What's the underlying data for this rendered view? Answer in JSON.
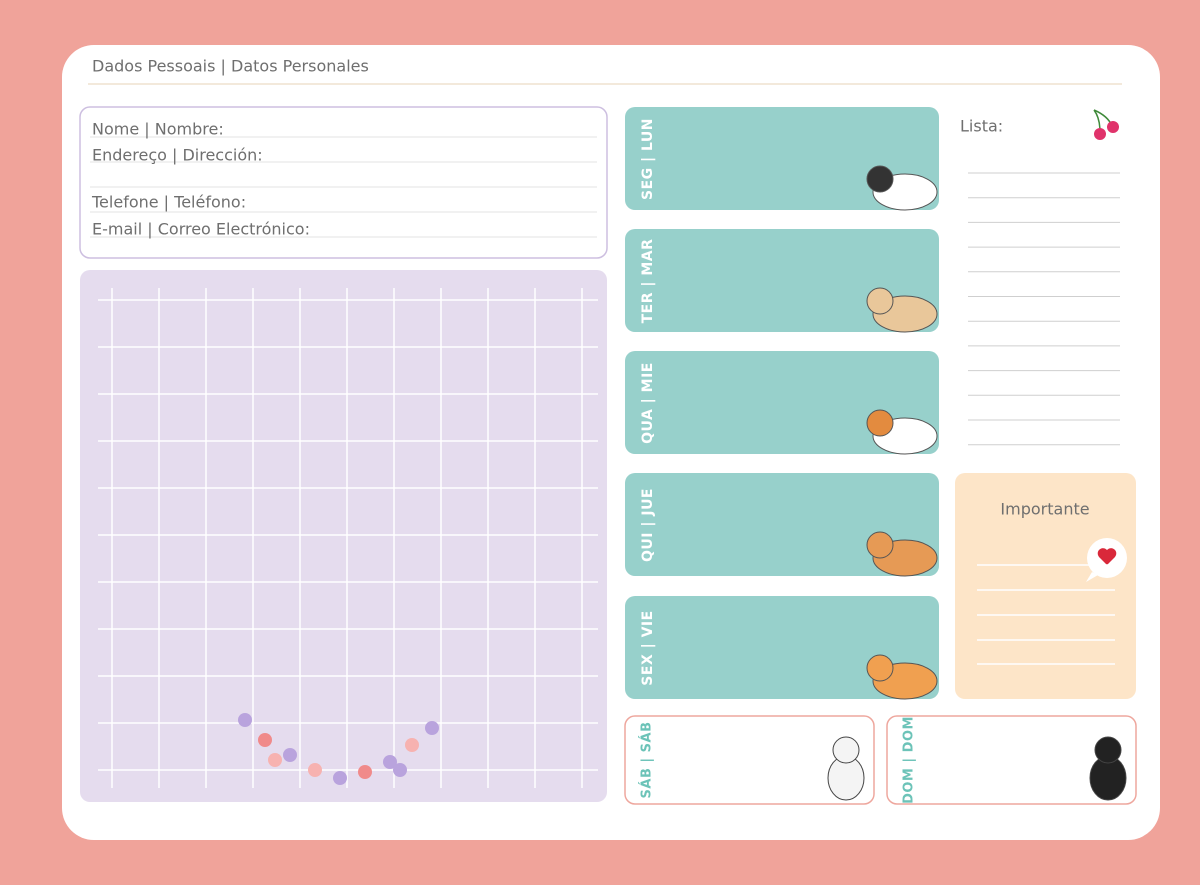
{
  "header": {
    "title": "Dados Pessoais | Datos Personales"
  },
  "form": {
    "fields": [
      "Nome | Nombre:",
      "Endereço | Dirección:",
      "Telefone | Teléfono:",
      "E-mail | Correo Electrónico:"
    ]
  },
  "days": [
    "SEG | LUN",
    "TER | MAR",
    "QUA | MIE",
    "QUI | JUE",
    "SEX | VIE"
  ],
  "weekend": [
    "SÁB | SÁB",
    "DOM | DOM"
  ],
  "list": {
    "title": "Lista:"
  },
  "important": {
    "title": "Importante"
  }
}
